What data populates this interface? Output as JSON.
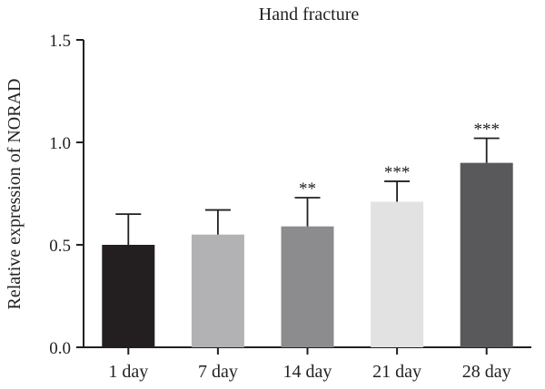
{
  "chart_data": {
    "type": "bar",
    "title": "Hand fracture",
    "xlabel": "",
    "ylabel": "Relative expression of NORAD",
    "categories": [
      "1 day",
      "7 day",
      "14 day",
      "21 day",
      "28 day"
    ],
    "values": [
      0.5,
      0.55,
      0.59,
      0.71,
      0.9
    ],
    "errors": [
      0.15,
      0.12,
      0.14,
      0.1,
      0.12
    ],
    "significance": [
      "",
      "",
      "**",
      "***",
      "***"
    ],
    "bar_colors": [
      "#231f20",
      "#b2b2b4",
      "#8c8c8e",
      "#e2e2e3",
      "#59595b"
    ],
    "ylim": [
      0,
      1.5
    ],
    "yticks": [
      "0.0",
      "0.5",
      "1.0",
      "1.5"
    ],
    "grid": false,
    "legend": "none"
  }
}
